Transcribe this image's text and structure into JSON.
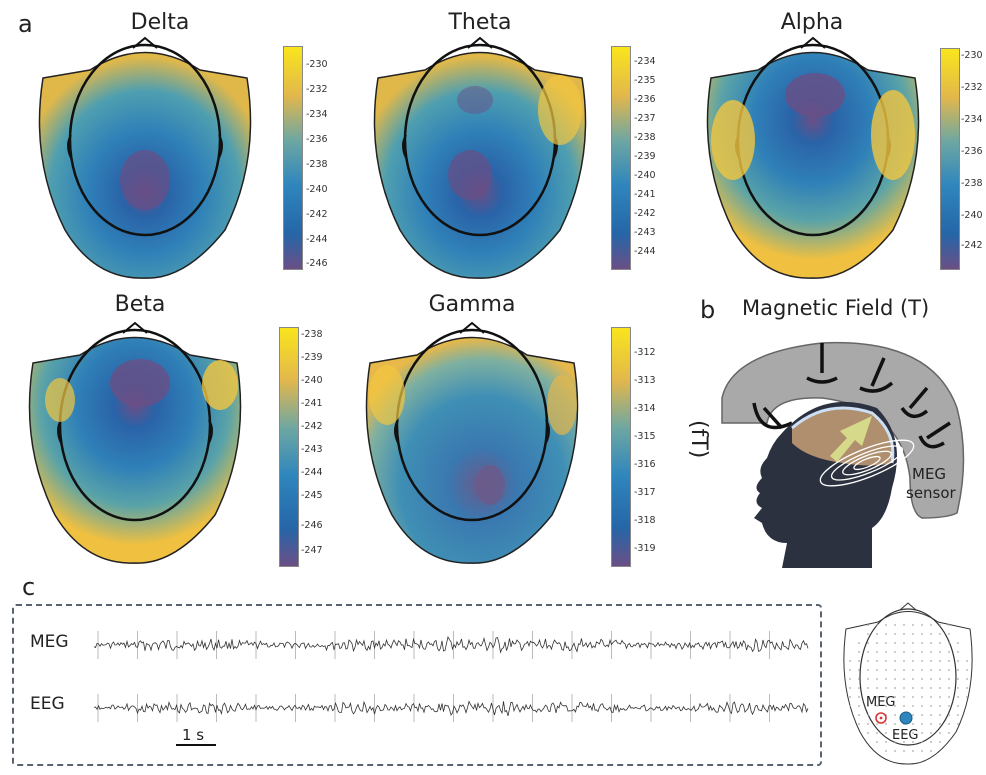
{
  "panel_labels": {
    "a": "a",
    "b": "b",
    "c": "c"
  },
  "colors": {
    "low": "#6a4f86",
    "mid": "#2f7fb6",
    "mid2": "#4a9bb5",
    "high": "#f7e51f",
    "warm": "#e6b74a"
  },
  "topomaps": [
    {
      "title": "Delta",
      "ticks": [
        "-230",
        "-232",
        "-234",
        "-236",
        "-238",
        "-240",
        "-242",
        "-244",
        "-246"
      ],
      "focus": "central"
    },
    {
      "title": "Theta",
      "ticks": [
        "-234",
        "-235",
        "-236",
        "-237",
        "-238",
        "-239",
        "-240",
        "-241",
        "-242",
        "-243",
        "-244"
      ],
      "focus": "central"
    },
    {
      "title": "Alpha",
      "ticks": [
        "-230",
        "-232",
        "-234",
        "-236",
        "-238",
        "-240",
        "-242"
      ],
      "focus": "frontal"
    },
    {
      "title": "Beta",
      "ticks": [
        "-238",
        "-239",
        "-240",
        "-241",
        "-242",
        "-243",
        "-244",
        "-245",
        "-246",
        "-247"
      ],
      "focus": "frontal"
    },
    {
      "title": "Gamma",
      "ticks": [
        "-312",
        "-313",
        "-314",
        "-315",
        "-316",
        "-317",
        "-318",
        "-319"
      ],
      "focus": "posterior"
    }
  ],
  "unit_label": "(fT)",
  "panel_b": {
    "title": "Magnetic Field (T)",
    "sensor_label_1": "MEG",
    "sensor_label_2": "sensor"
  },
  "panel_c": {
    "trace_labels": [
      "MEG",
      "EEG"
    ],
    "scale_bar": "1 s",
    "inset_meg": "MEG",
    "inset_eeg": "EEG"
  }
}
